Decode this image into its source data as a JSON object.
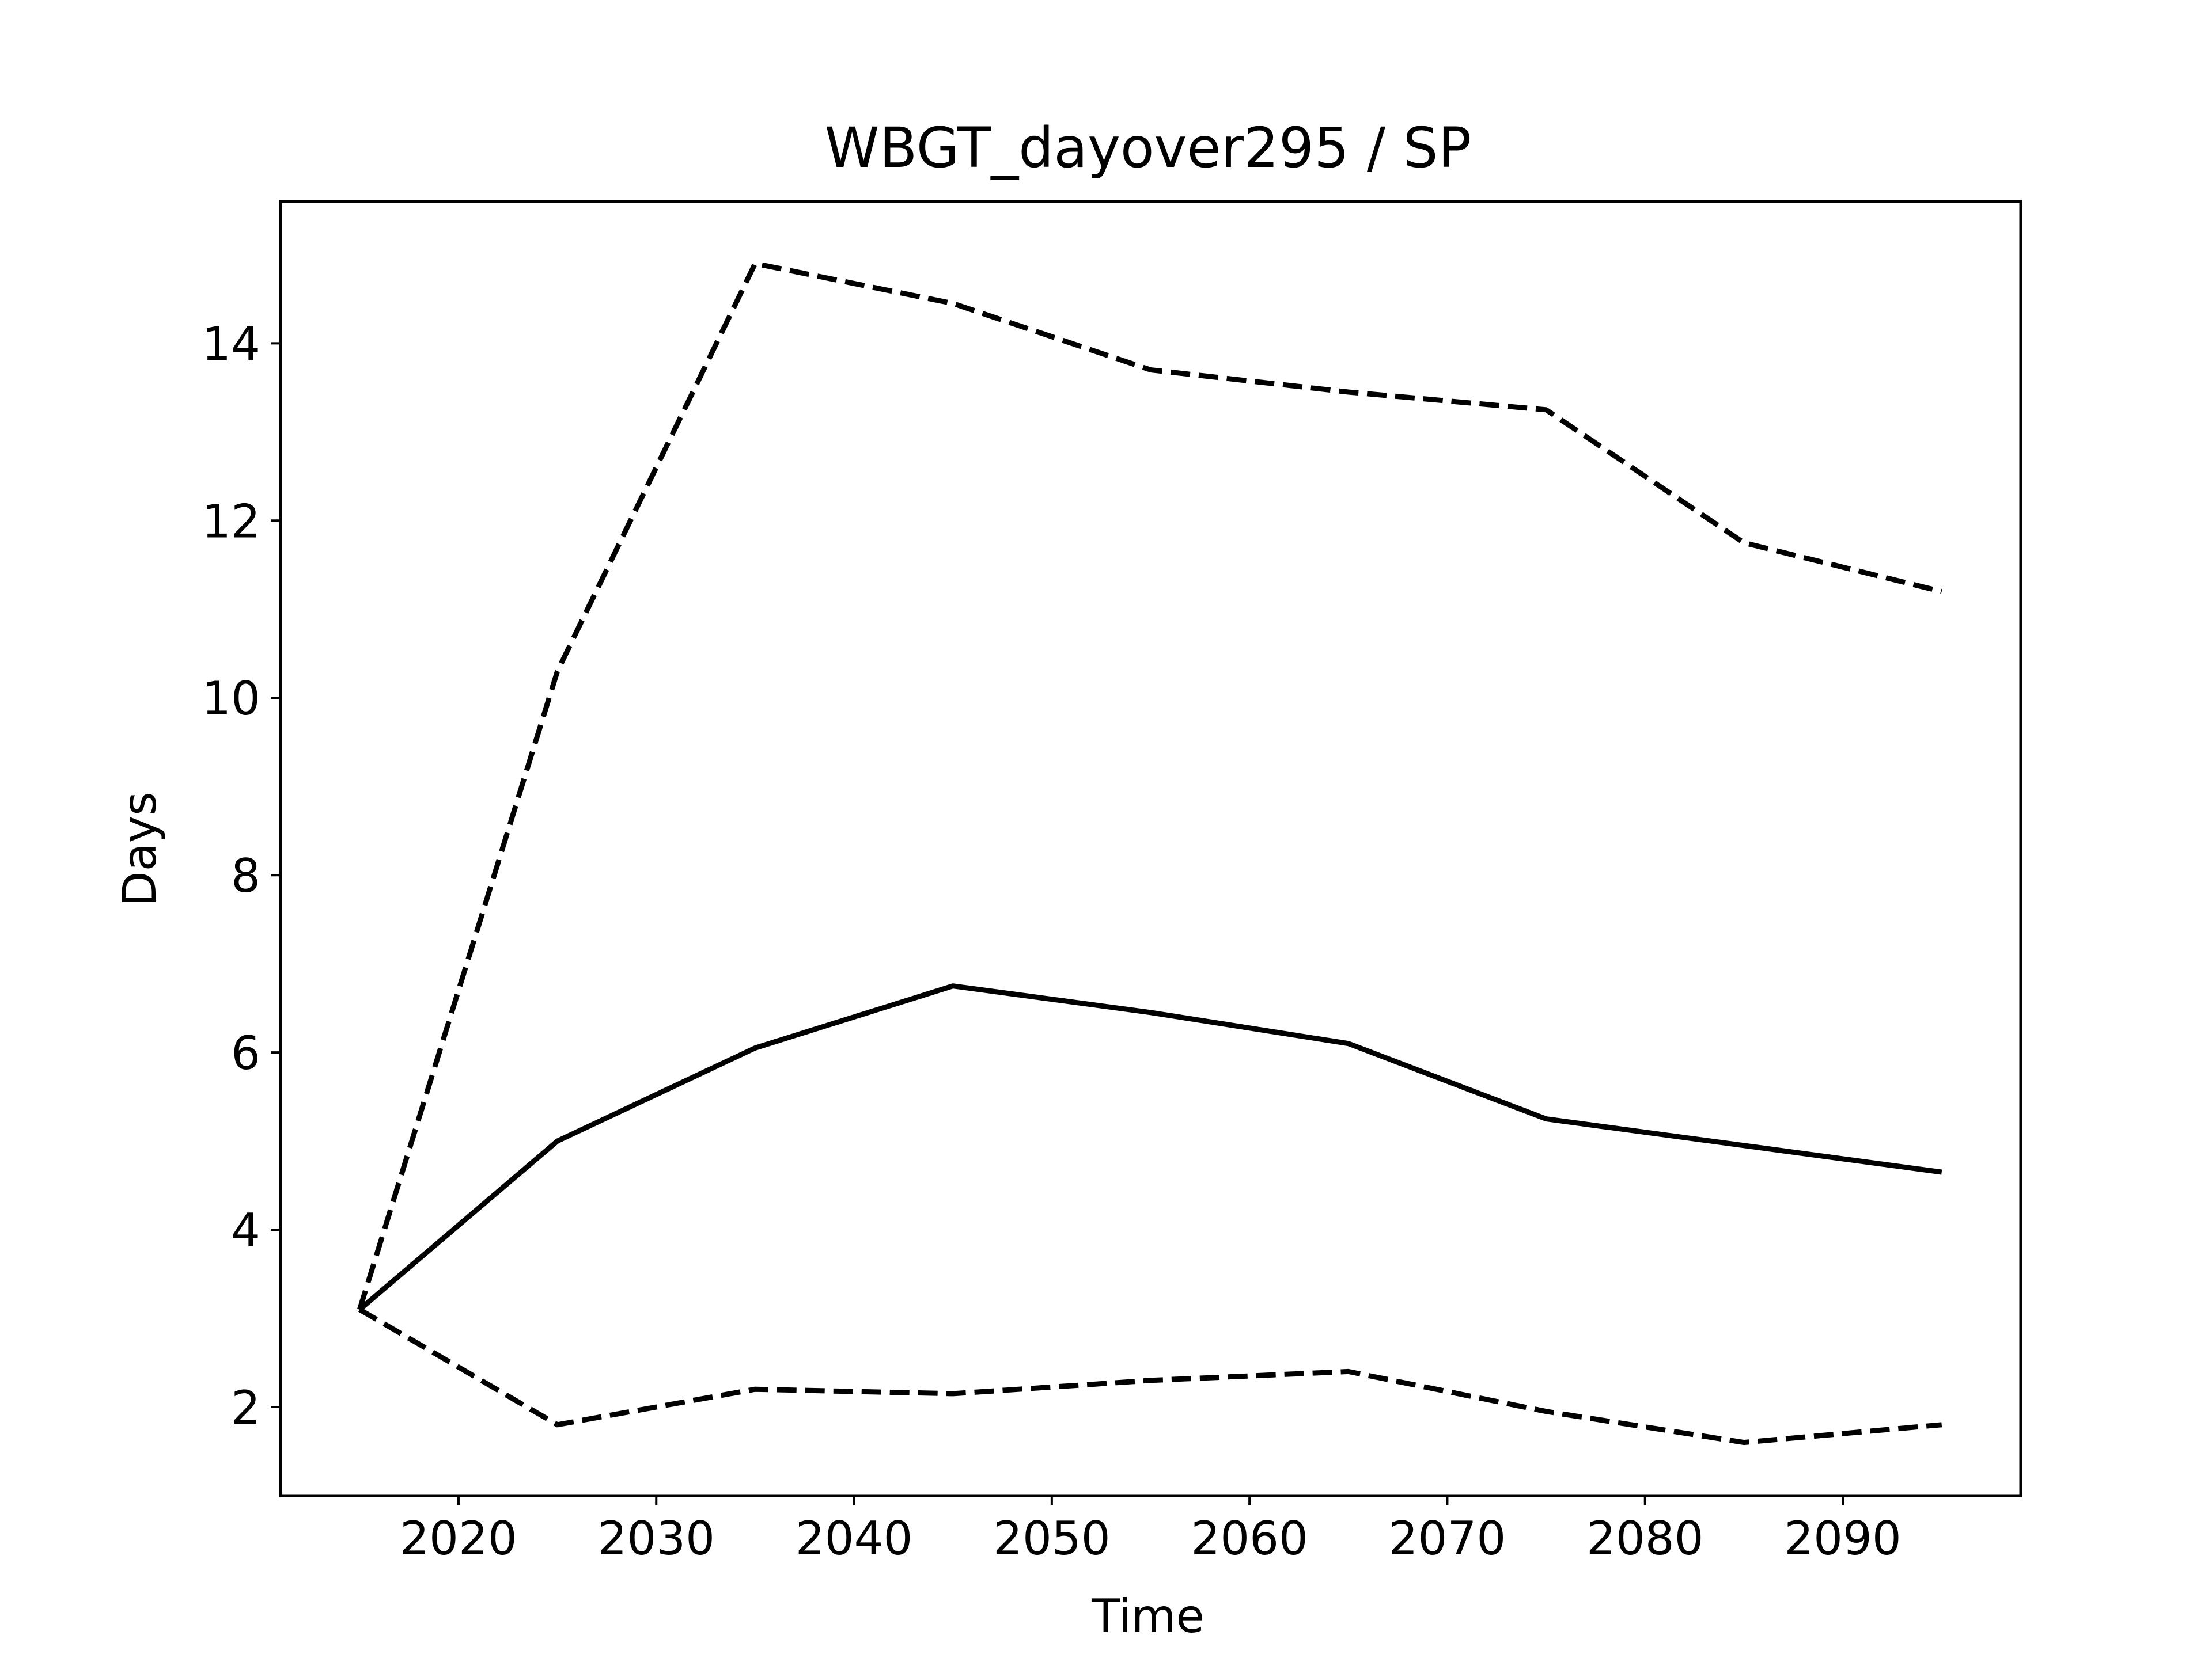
{
  "chart_data": {
    "type": "line",
    "title": "WBGT_dayover295 / SP",
    "xlabel": "Time",
    "ylabel": "Days",
    "xlim": [
      2011,
      2099
    ],
    "ylim": [
      1.0,
      15.6
    ],
    "xticks": [
      2020,
      2030,
      2040,
      2050,
      2060,
      2070,
      2080,
      2090
    ],
    "yticks": [
      2,
      4,
      6,
      8,
      10,
      12,
      14
    ],
    "grid": false,
    "legend": "none",
    "x": [
      2015,
      2025,
      2035,
      2045,
      2055,
      2065,
      2075,
      2085,
      2095
    ],
    "series": [
      {
        "style": "solid",
        "color": "#000000",
        "values": [
          3.1,
          5.0,
          6.05,
          6.75,
          6.45,
          6.1,
          5.25,
          4.95,
          4.65
        ]
      },
      {
        "style": "dashed",
        "color": "#000000",
        "values": [
          3.1,
          10.3,
          14.9,
          14.45,
          13.7,
          13.45,
          13.25,
          11.75,
          11.2
        ]
      },
      {
        "style": "dashed",
        "color": "#000000",
        "values": [
          3.1,
          1.8,
          2.2,
          2.15,
          2.3,
          2.4,
          1.95,
          1.6,
          1.8
        ]
      }
    ]
  }
}
